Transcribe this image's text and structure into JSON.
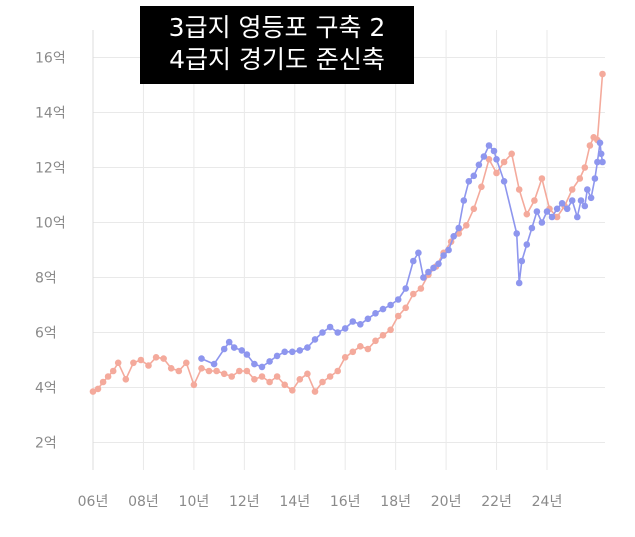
{
  "chart_data": {
    "type": "line",
    "title_lines": [
      "3급지 영등포 구축 2",
      "4급지 경기도 준신축"
    ],
    "xlabel": "",
    "ylabel": "",
    "x_ticks": [
      "06년",
      "08년",
      "10년",
      "12년",
      "14년",
      "16년",
      "18년",
      "20년",
      "22년",
      "24년"
    ],
    "y_ticks": [
      "2억",
      "4억",
      "6억",
      "8억",
      "10억",
      "12억",
      "14억",
      "16억"
    ],
    "xlim": [
      2006,
      2026.3
    ],
    "ylim": [
      1,
      17
    ],
    "grid": true,
    "colors": {
      "blue": "#8e96ee",
      "salmon": "#f4aa9c",
      "grid": "#e9e9e9",
      "tick": "#8a8a8a"
    },
    "series": [
      {
        "color": "#8e96ee",
        "x": [
          2010.3,
          2010.8,
          2011.2,
          2011.4,
          2011.6,
          2011.9,
          2012.1,
          2012.4,
          2012.7,
          2013.0,
          2013.3,
          2013.6,
          2013.9,
          2014.2,
          2014.5,
          2014.8,
          2015.1,
          2015.4,
          2015.7,
          2016.0,
          2016.3,
          2016.6,
          2016.9,
          2017.2,
          2017.5,
          2017.8,
          2018.1,
          2018.4,
          2018.7,
          2018.9,
          2019.1,
          2019.3,
          2019.5,
          2019.7,
          2019.9,
          2020.1,
          2020.3,
          2020.5,
          2020.7,
          2020.9,
          2021.1,
          2021.3,
          2021.5,
          2021.7,
          2021.9,
          2022.0,
          2022.3,
          2022.8,
          2022.9,
          2023.0,
          2023.2,
          2023.4,
          2023.6,
          2023.8,
          2024.0,
          2024.2,
          2024.4,
          2024.6,
          2024.8,
          2025.0,
          2025.2,
          2025.35,
          2025.5,
          2025.6,
          2025.75,
          2025.9,
          2026.0,
          2026.1,
          2026.15,
          2026.2
        ],
        "values": [
          5.05,
          4.85,
          5.4,
          5.65,
          5.45,
          5.35,
          5.2,
          4.85,
          4.75,
          4.95,
          5.15,
          5.3,
          5.3,
          5.35,
          5.45,
          5.75,
          6.0,
          6.2,
          6.0,
          6.15,
          6.4,
          6.3,
          6.5,
          6.7,
          6.85,
          7.0,
          7.2,
          7.6,
          8.6,
          8.9,
          8.0,
          8.2,
          8.35,
          8.5,
          8.8,
          9.0,
          9.5,
          9.8,
          10.8,
          11.5,
          11.7,
          12.1,
          12.4,
          12.8,
          12.6,
          12.3,
          11.5,
          9.6,
          7.8,
          8.6,
          9.2,
          9.8,
          10.4,
          10.0,
          10.4,
          10.2,
          10.5,
          10.7,
          10.5,
          10.8,
          10.2,
          10.8,
          10.6,
          11.2,
          10.9,
          11.6,
          12.2,
          12.9,
          12.5,
          12.2
        ]
      },
      {
        "color": "#f4aa9c",
        "x": [
          2006.0,
          2006.2,
          2006.4,
          2006.6,
          2006.8,
          2007.0,
          2007.3,
          2007.6,
          2007.9,
          2008.2,
          2008.5,
          2008.8,
          2009.1,
          2009.4,
          2009.7,
          2010.0,
          2010.3,
          2010.6,
          2010.9,
          2011.2,
          2011.5,
          2011.8,
          2012.1,
          2012.4,
          2012.7,
          2013.0,
          2013.3,
          2013.6,
          2013.9,
          2014.2,
          2014.5,
          2014.8,
          2015.1,
          2015.4,
          2015.7,
          2016.0,
          2016.3,
          2016.6,
          2016.9,
          2017.2,
          2017.5,
          2017.8,
          2018.1,
          2018.4,
          2018.7,
          2019.0,
          2019.3,
          2019.6,
          2019.9,
          2020.2,
          2020.5,
          2020.8,
          2021.1,
          2021.4,
          2021.7,
          2022.0,
          2022.3,
          2022.6,
          2022.9,
          2023.2,
          2023.5,
          2023.8,
          2024.1,
          2024.4,
          2024.7,
          2025.0,
          2025.3,
          2025.5,
          2025.7,
          2025.85,
          2026.0,
          2026.2
        ],
        "values": [
          3.85,
          3.95,
          4.2,
          4.4,
          4.6,
          4.9,
          4.3,
          4.9,
          5.0,
          4.8,
          5.1,
          5.05,
          4.7,
          4.6,
          4.9,
          4.1,
          4.7,
          4.6,
          4.6,
          4.5,
          4.4,
          4.6,
          4.6,
          4.3,
          4.4,
          4.2,
          4.4,
          4.1,
          3.9,
          4.3,
          4.5,
          3.85,
          4.2,
          4.4,
          4.6,
          5.1,
          5.3,
          5.5,
          5.4,
          5.7,
          5.9,
          6.1,
          6.6,
          6.9,
          7.4,
          7.6,
          8.1,
          8.4,
          8.9,
          9.3,
          9.6,
          9.9,
          10.5,
          11.3,
          12.3,
          11.8,
          12.2,
          12.5,
          11.2,
          10.3,
          10.8,
          11.6,
          10.5,
          10.2,
          10.6,
          11.2,
          11.6,
          12.0,
          12.8,
          13.1,
          13.0,
          15.4
        ]
      }
    ]
  }
}
